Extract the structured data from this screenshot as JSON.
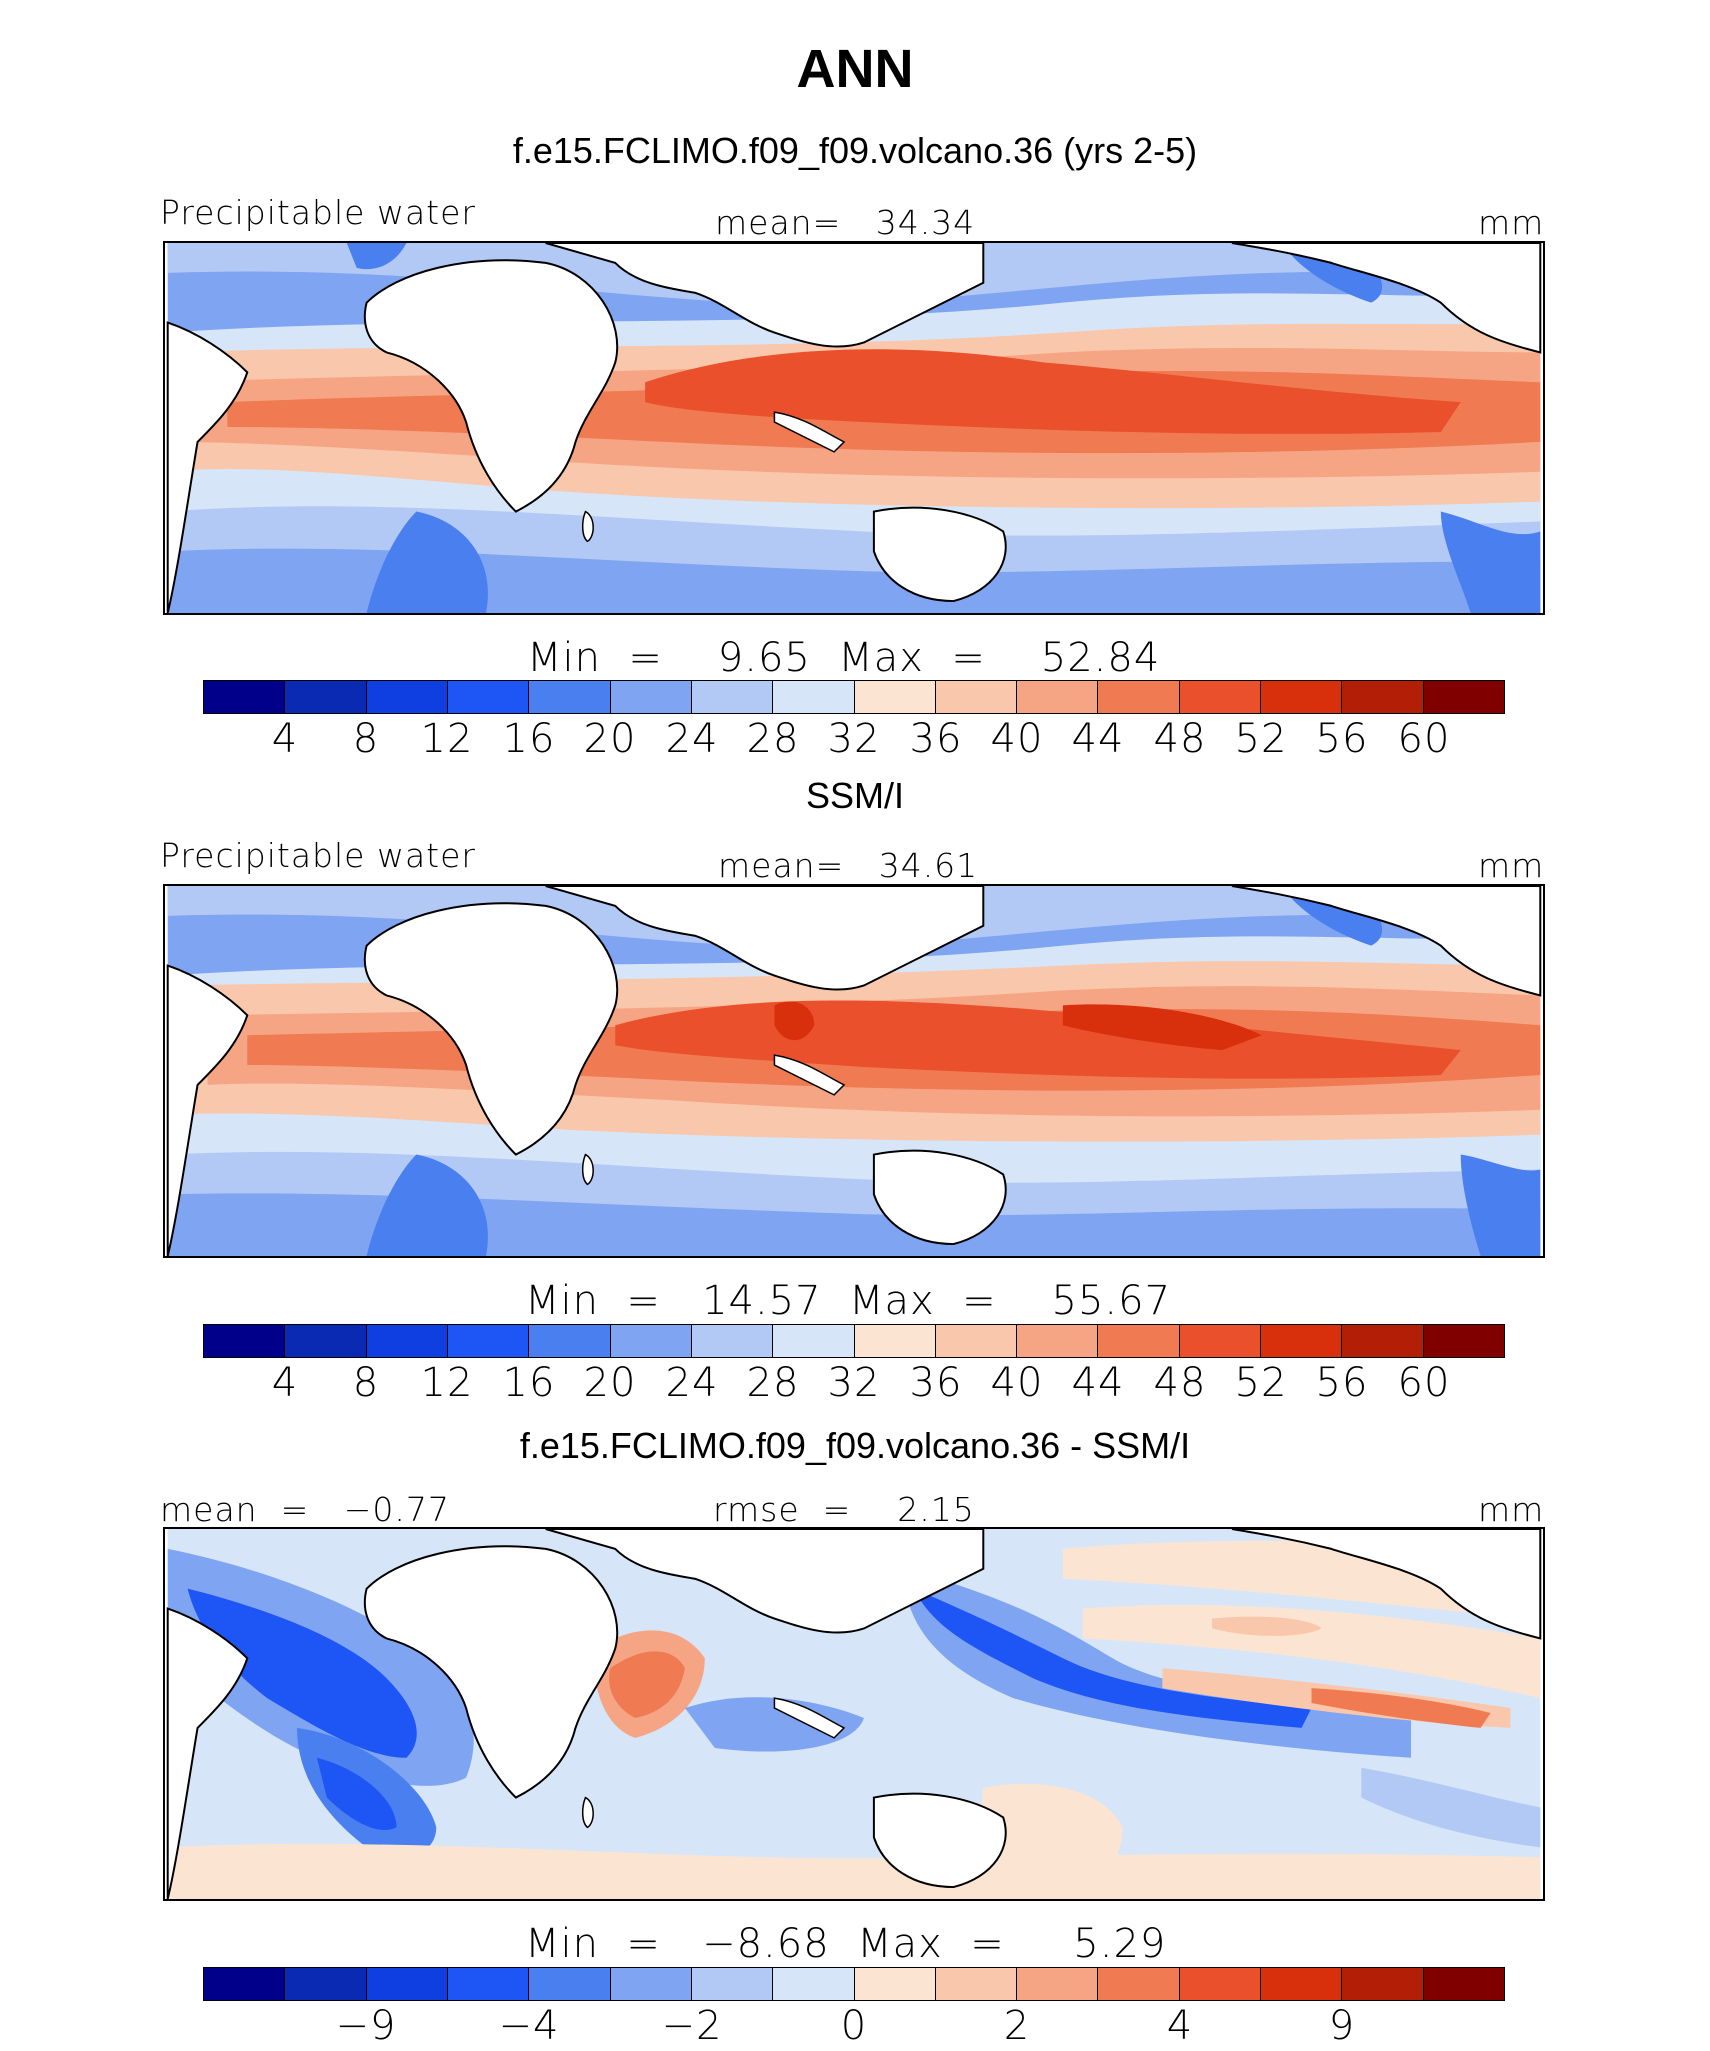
{
  "page": {
    "main_title": "ANN"
  },
  "panels": [
    {
      "title": "f.e15.FCLIMO.f09_f09.volcano.36 (yrs 2-5)",
      "left_label": "Precipitable water",
      "center_label": "mean=   34.34",
      "right_label": "mm",
      "minmax": "Min  =    9.65  Max  =    52.84",
      "ticks": [
        "4",
        "8",
        "12",
        "16",
        "20",
        "24",
        "28",
        "32",
        "36",
        "40",
        "44",
        "48",
        "52",
        "56",
        "60"
      ]
    },
    {
      "title": "SSM/I",
      "left_label": "Precipitable water",
      "center_label": "mean=   34.61",
      "right_label": "mm",
      "minmax": "Min  =   14.57  Max  =    55.67",
      "ticks": [
        "4",
        "8",
        "12",
        "16",
        "20",
        "24",
        "28",
        "32",
        "36",
        "40",
        "44",
        "48",
        "52",
        "56",
        "60"
      ]
    },
    {
      "title": "f.e15.FCLIMO.f09_f09.volcano.36 - SSM/I",
      "left_label": "mean  =   −0.77",
      "center_label": "rmse  =    2.15",
      "right_label": "mm",
      "minmax": "Min  =   −8.68  Max  =     5.29",
      "ticks": [
        "−9",
        "−4",
        "−2",
        "0",
        "2",
        "4",
        "9"
      ]
    }
  ],
  "colorbar": {
    "colors": [
      "#00008b",
      "#0a2ab4",
      "#0f3fe0",
      "#1e55f5",
      "#4a7ff0",
      "#7ea4f2",
      "#b3c9f5",
      "#d6e6f8",
      "#fbe5d2",
      "#f9c7ab",
      "#f6a584",
      "#f07a52",
      "#e9502b",
      "#d8300c",
      "#b21e06",
      "#800000"
    ]
  },
  "chart_data": [
    {
      "type": "heatmap",
      "title": "f.e15.FCLIMO.f09_f09.volcano.36 (yrs 2-5)",
      "variable": "Precipitable water",
      "units": "mm",
      "mean": 34.34,
      "min": 9.65,
      "max": 52.84,
      "contour_levels": [
        4,
        8,
        12,
        16,
        20,
        24,
        28,
        32,
        36,
        40,
        44,
        48,
        52,
        56,
        60
      ]
    },
    {
      "type": "heatmap",
      "title": "SSM/I",
      "variable": "Precipitable water",
      "units": "mm",
      "mean": 34.61,
      "min": 14.57,
      "max": 55.67,
      "contour_levels": [
        4,
        8,
        12,
        16,
        20,
        24,
        28,
        32,
        36,
        40,
        44,
        48,
        52,
        56,
        60
      ]
    },
    {
      "type": "heatmap",
      "title": "f.e15.FCLIMO.f09_f09.volcano.36 - SSM/I",
      "units": "mm",
      "mean": -0.77,
      "rmse": 2.15,
      "min": -8.68,
      "max": 5.29,
      "contour_levels": [
        -9,
        -4,
        -2,
        0,
        2,
        4,
        9
      ]
    }
  ]
}
